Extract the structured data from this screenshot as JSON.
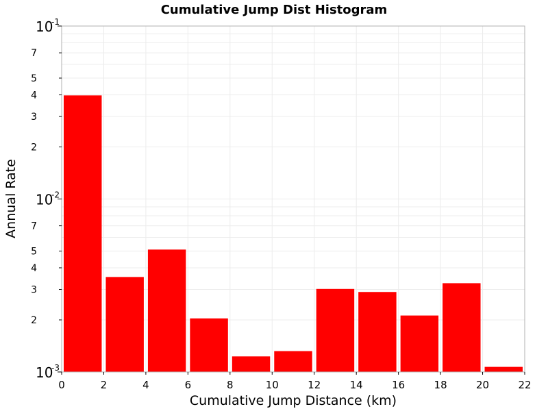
{
  "chart_data": {
    "type": "bar",
    "title": "Cumulative Jump Dist Histogram",
    "xlabel": "Cumulative Jump Distance (km)",
    "ylabel": "Annual Rate",
    "xlim": [
      0,
      22
    ],
    "ylim": [
      0.001,
      0.1
    ],
    "y_scale": "log",
    "grid": true,
    "color": "#ff0000",
    "x_ticks": [
      "0",
      "2",
      "4",
      "6",
      "8",
      "10",
      "12",
      "14",
      "16",
      "18",
      "20",
      "22"
    ],
    "y_minor_ticks": [
      {
        "value": 0.002,
        "label": "2"
      },
      {
        "value": 0.003,
        "label": "3"
      },
      {
        "value": 0.004,
        "label": "4"
      },
      {
        "value": 0.005,
        "label": "5"
      },
      {
        "value": 0.007,
        "label": "7"
      },
      {
        "value": 0.02,
        "label": "2"
      },
      {
        "value": 0.03,
        "label": "3"
      },
      {
        "value": 0.04,
        "label": "4"
      },
      {
        "value": 0.05,
        "label": "5"
      },
      {
        "value": 0.07,
        "label": "7"
      }
    ],
    "y_decades": [
      {
        "value": 0.001,
        "base": "10",
        "exp": "-3"
      },
      {
        "value": 0.01,
        "base": "10",
        "exp": "-2"
      },
      {
        "value": 0.1,
        "base": "10",
        "exp": "-1"
      }
    ],
    "bins": [
      {
        "x0": 0,
        "x1": 2,
        "value": 0.0397
      },
      {
        "x0": 2,
        "x1": 4,
        "value": 0.00354
      },
      {
        "x0": 4,
        "x1": 6,
        "value": 0.0051
      },
      {
        "x0": 6,
        "x1": 8,
        "value": 0.00204
      },
      {
        "x0": 8,
        "x1": 10,
        "value": 0.00123
      },
      {
        "x0": 10,
        "x1": 12,
        "value": 0.00132
      },
      {
        "x0": 12,
        "x1": 14,
        "value": 0.00302
      },
      {
        "x0": 14,
        "x1": 16,
        "value": 0.0029
      },
      {
        "x0": 16,
        "x1": 18,
        "value": 0.00212
      },
      {
        "x0": 18,
        "x1": 20,
        "value": 0.00326
      },
      {
        "x0": 20,
        "x1": 22,
        "value": 0.00107
      }
    ]
  }
}
